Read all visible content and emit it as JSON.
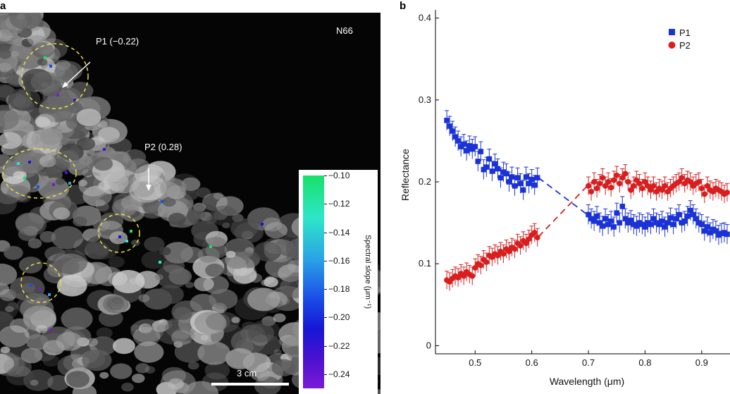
{
  "panel_a": {
    "letter": "a",
    "image_label": "N66",
    "callouts": [
      {
        "label": "P1 (−0.22)"
      },
      {
        "label": "P2 (0.28)"
      }
    ],
    "scale_bar": "3 cm",
    "colorbar": {
      "title": "Spectral slope (μm⁻¹)",
      "ticks": [
        "−0.10",
        "−0.12",
        "−0.14",
        "−0.16",
        "−0.18",
        "−0.20",
        "−0.22",
        "−0.24"
      ],
      "colors": [
        "#18e06a",
        "#2ee6c8",
        "#2aa0e6",
        "#1a4de6",
        "#1616d6",
        "#4a12d0",
        "#7a1ad6"
      ]
    }
  },
  "panel_b": {
    "letter": "b",
    "chart_data": {
      "type": "scatter",
      "title": "",
      "xlabel": "Wavelength (μm)",
      "ylabel": "Reflectance",
      "xlim": [
        0.43,
        0.95
      ],
      "ylim": [
        -0.01,
        0.41
      ],
      "xticks": [
        "0.5",
        "0.6",
        "0.7",
        "0.8",
        "0.9"
      ],
      "yticks": [
        "0",
        "0.1",
        "0.2",
        "0.3",
        "0.4"
      ],
      "legend_position": "top-right",
      "series": [
        {
          "name": "P1",
          "color": "#1a32d6",
          "marker": "square",
          "error": 0.012,
          "x": [
            0.45,
            0.455,
            0.46,
            0.465,
            0.47,
            0.475,
            0.48,
            0.485,
            0.49,
            0.495,
            0.5,
            0.505,
            0.51,
            0.515,
            0.52,
            0.525,
            0.53,
            0.535,
            0.54,
            0.545,
            0.55,
            0.555,
            0.56,
            0.565,
            0.57,
            0.575,
            0.58,
            0.585,
            0.59,
            0.595,
            0.6,
            0.605,
            0.61,
            0.7,
            0.705,
            0.71,
            0.715,
            0.72,
            0.725,
            0.73,
            0.735,
            0.74,
            0.745,
            0.75,
            0.755,
            0.76,
            0.765,
            0.77,
            0.775,
            0.78,
            0.785,
            0.79,
            0.795,
            0.8,
            0.805,
            0.81,
            0.815,
            0.82,
            0.825,
            0.83,
            0.835,
            0.84,
            0.845,
            0.85,
            0.855,
            0.86,
            0.865,
            0.87,
            0.875,
            0.88,
            0.885,
            0.89,
            0.895,
            0.9,
            0.905,
            0.91,
            0.915,
            0.92,
            0.925,
            0.93,
            0.935,
            0.94,
            0.945
          ],
          "y": [
            0.275,
            0.268,
            0.262,
            0.255,
            0.25,
            0.243,
            0.246,
            0.238,
            0.244,
            0.24,
            0.243,
            0.225,
            0.237,
            0.215,
            0.218,
            0.228,
            0.213,
            0.222,
            0.216,
            0.205,
            0.212,
            0.21,
            0.2,
            0.206,
            0.195,
            0.205,
            0.198,
            0.19,
            0.206,
            0.198,
            0.203,
            0.196,
            0.205,
            0.16,
            0.155,
            0.152,
            0.158,
            0.15,
            0.146,
            0.155,
            0.148,
            0.152,
            0.145,
            0.162,
            0.15,
            0.17,
            0.155,
            0.15,
            0.153,
            0.148,
            0.146,
            0.15,
            0.148,
            0.145,
            0.15,
            0.148,
            0.155,
            0.15,
            0.148,
            0.152,
            0.145,
            0.15,
            0.156,
            0.148,
            0.155,
            0.16,
            0.15,
            0.152,
            0.158,
            0.165,
            0.16,
            0.155,
            0.15,
            0.148,
            0.14,
            0.145,
            0.138,
            0.142,
            0.14,
            0.135,
            0.137,
            0.138,
            0.136
          ]
        },
        {
          "name": "P2",
          "color": "#d81e1e",
          "marker": "circle",
          "error": 0.011,
          "x": [
            0.45,
            0.455,
            0.46,
            0.465,
            0.47,
            0.475,
            0.48,
            0.485,
            0.49,
            0.495,
            0.5,
            0.505,
            0.51,
            0.515,
            0.52,
            0.525,
            0.53,
            0.535,
            0.54,
            0.545,
            0.55,
            0.555,
            0.56,
            0.565,
            0.57,
            0.575,
            0.58,
            0.585,
            0.59,
            0.595,
            0.6,
            0.605,
            0.61,
            0.7,
            0.705,
            0.71,
            0.715,
            0.72,
            0.725,
            0.73,
            0.735,
            0.74,
            0.745,
            0.75,
            0.755,
            0.76,
            0.765,
            0.77,
            0.775,
            0.78,
            0.785,
            0.79,
            0.795,
            0.8,
            0.805,
            0.81,
            0.815,
            0.82,
            0.825,
            0.83,
            0.835,
            0.84,
            0.845,
            0.85,
            0.855,
            0.86,
            0.865,
            0.87,
            0.875,
            0.88,
            0.885,
            0.89,
            0.895,
            0.9,
            0.905,
            0.91,
            0.915,
            0.92,
            0.925,
            0.93,
            0.935,
            0.94,
            0.945
          ],
          "y": [
            0.08,
            0.078,
            0.082,
            0.085,
            0.083,
            0.088,
            0.085,
            0.09,
            0.087,
            0.085,
            0.095,
            0.1,
            0.098,
            0.105,
            0.102,
            0.11,
            0.108,
            0.112,
            0.11,
            0.115,
            0.112,
            0.118,
            0.115,
            0.12,
            0.118,
            0.125,
            0.122,
            0.128,
            0.125,
            0.13,
            0.135,
            0.138,
            0.132,
            0.195,
            0.188,
            0.2,
            0.192,
            0.198,
            0.205,
            0.195,
            0.2,
            0.193,
            0.202,
            0.208,
            0.198,
            0.205,
            0.21,
            0.2,
            0.19,
            0.195,
            0.202,
            0.198,
            0.192,
            0.2,
            0.195,
            0.19,
            0.195,
            0.188,
            0.192,
            0.19,
            0.195,
            0.188,
            0.192,
            0.195,
            0.198,
            0.2,
            0.205,
            0.198,
            0.202,
            0.2,
            0.195,
            0.198,
            0.2,
            0.192,
            0.185,
            0.195,
            0.19,
            0.188,
            0.192,
            0.19,
            0.188,
            0.185,
            0.187
          ]
        }
      ],
      "gap_lines": [
        {
          "series": "P1",
          "x": [
            0.612,
            0.698
          ],
          "y": [
            0.205,
            0.16
          ]
        },
        {
          "series": "P2",
          "x": [
            0.612,
            0.698
          ],
          "y": [
            0.133,
            0.195
          ]
        }
      ]
    }
  }
}
